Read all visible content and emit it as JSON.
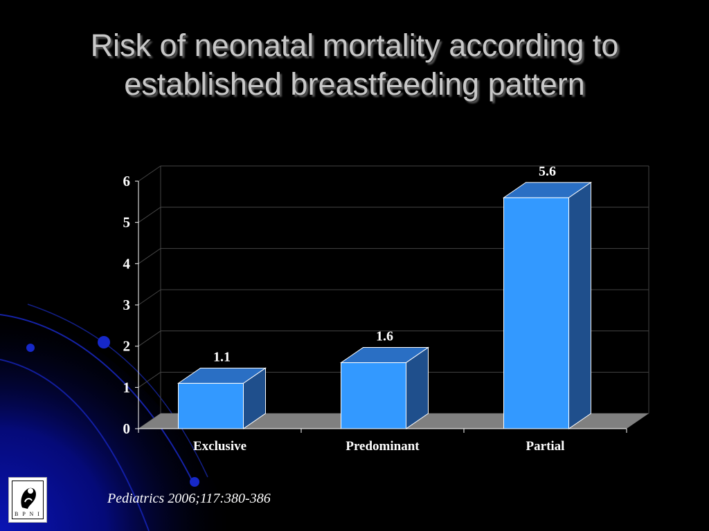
{
  "slide": {
    "title_line1": "Risk of neonatal mortality according to",
    "title_line2": "established breastfeeding pattern",
    "citation": "Pediatrics 2006;117:380-386",
    "logo_text": "B P N I"
  },
  "colors": {
    "background": "#000000",
    "bar_front": "#3399ff",
    "bar_top": "#2a6fc4",
    "bar_side": "#1f4f8c",
    "floor": "#808080",
    "grid": "#444444",
    "text": "#ffffff"
  },
  "chart_data": {
    "type": "bar",
    "categories": [
      "Exclusive",
      "Predominant",
      "Partial"
    ],
    "values": [
      1.1,
      1.6,
      5.6
    ],
    "data_labels": [
      "1.1",
      "1.6",
      "5.6"
    ],
    "yticks": [
      0,
      1,
      2,
      3,
      4,
      5,
      6
    ],
    "ylim": [
      0,
      6
    ],
    "grid": true,
    "style": "3d-column",
    "xlabel": "",
    "ylabel": ""
  }
}
